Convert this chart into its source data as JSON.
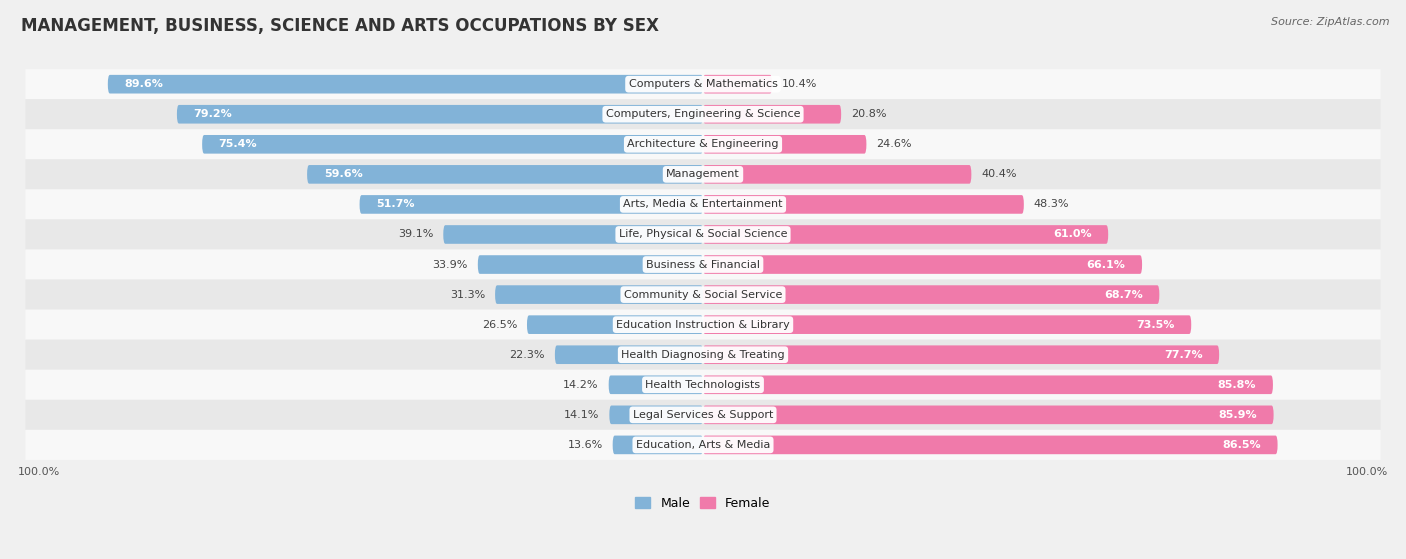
{
  "title": "MANAGEMENT, BUSINESS, SCIENCE AND ARTS OCCUPATIONS BY SEX",
  "source": "Source: ZipAtlas.com",
  "categories": [
    "Computers & Mathematics",
    "Computers, Engineering & Science",
    "Architecture & Engineering",
    "Management",
    "Arts, Media & Entertainment",
    "Life, Physical & Social Science",
    "Business & Financial",
    "Community & Social Service",
    "Education Instruction & Library",
    "Health Diagnosing & Treating",
    "Health Technologists",
    "Legal Services & Support",
    "Education, Arts & Media"
  ],
  "male_pct": [
    89.6,
    79.2,
    75.4,
    59.6,
    51.7,
    39.1,
    33.9,
    31.3,
    26.5,
    22.3,
    14.2,
    14.1,
    13.6
  ],
  "female_pct": [
    10.4,
    20.8,
    24.6,
    40.4,
    48.3,
    61.0,
    66.1,
    68.7,
    73.5,
    77.7,
    85.8,
    85.9,
    86.5
  ],
  "male_color": "#82b3d8",
  "female_color": "#f07aaa",
  "bg_color": "#f0f0f0",
  "row_bg_light": "#f8f8f8",
  "row_bg_dark": "#e8e8e8",
  "title_fontsize": 12,
  "label_fontsize": 8,
  "pct_fontsize": 8,
  "legend_fontsize": 9,
  "source_fontsize": 8,
  "bar_height": 0.62,
  "total_width": 100
}
